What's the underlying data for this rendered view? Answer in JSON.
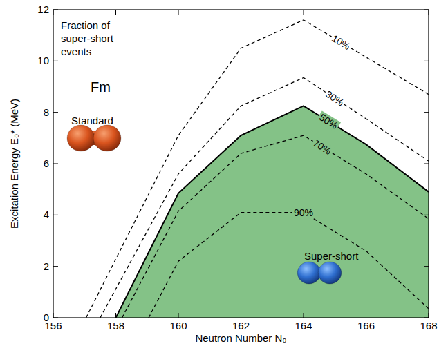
{
  "chart_data": {
    "type": "line",
    "title": "Fraction of super-short events",
    "x_label": "Neutron Number N₀",
    "y_label": "Excitation Energy E₀* (MeV)",
    "xlim": [
      156,
      168
    ],
    "ylim": [
      0,
      12
    ],
    "xticks": [
      156,
      158,
      160,
      162,
      164,
      166,
      168
    ],
    "yticks": [
      0,
      2,
      4,
      6,
      8,
      10,
      12
    ],
    "grid": false,
    "annotations": [
      "Fm",
      "Standard",
      "Super-short"
    ],
    "series": [
      {
        "name": "10%",
        "type": "line",
        "color": "#000000",
        "line_style": "dashed",
        "x": [
          157.05,
          160,
          162,
          164,
          166,
          168
        ],
        "values": [
          0,
          7.1,
          10.5,
          11.6,
          10.15,
          8.7
        ]
      },
      {
        "name": "30%",
        "type": "line",
        "color": "#000000",
        "line_style": "dashed",
        "x": [
          157.5,
          160,
          162,
          164,
          166,
          168
        ],
        "values": [
          0,
          5.6,
          8.25,
          9.35,
          7.75,
          6.1
        ]
      },
      {
        "name": "50%",
        "type": "area",
        "color": "#84c287",
        "line_style": "solid",
        "x": [
          158,
          160,
          162,
          164,
          166,
          168
        ],
        "values": [
          0,
          4.85,
          7.1,
          8.25,
          6.75,
          4.9
        ]
      },
      {
        "name": "70%",
        "type": "line",
        "color": "#000000",
        "line_style": "dashed",
        "x": [
          158.2,
          160,
          162,
          164,
          166,
          168
        ],
        "values": [
          0,
          4.15,
          6.4,
          7.1,
          5.6,
          3.85
        ]
      },
      {
        "name": "90%",
        "type": "line",
        "color": "#000000",
        "line_style": "dashed",
        "x": [
          159.05,
          160,
          162,
          164,
          166,
          168
        ],
        "values": [
          0,
          2.2,
          4.1,
          4.1,
          2.6,
          0.35
        ]
      }
    ]
  }
}
